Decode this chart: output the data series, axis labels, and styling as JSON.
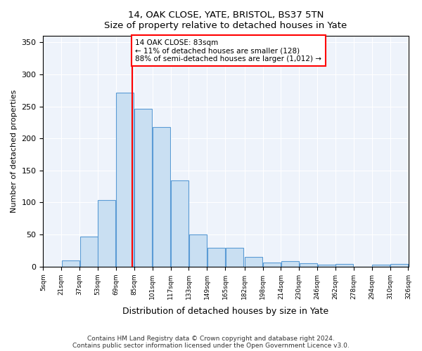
{
  "title": "14, OAK CLOSE, YATE, BRISTOL, BS37 5TN",
  "subtitle": "Size of property relative to detached houses in Yate",
  "xlabel": "Distribution of detached houses by size in Yate",
  "ylabel": "Number of detached properties",
  "footer_line1": "Contains HM Land Registry data © Crown copyright and database right 2024.",
  "footer_line2": "Contains public sector information licensed under the Open Government Licence v3.0.",
  "annotation_title": "14 OAK CLOSE: 83sqm",
  "annotation_line1": "← 11% of detached houses are smaller (128)",
  "annotation_line2": "88% of semi-detached houses are larger (1,012) →",
  "property_size": 83,
  "bar_edge_color": "#5b9bd5",
  "bar_fill_color": "#c9dff2",
  "vline_color": "red",
  "annotation_box_color": "red",
  "background_color": "#eef3fb",
  "bins": [
    5,
    21,
    37,
    53,
    69,
    85,
    101,
    117,
    133,
    149,
    165,
    182,
    198,
    214,
    230,
    246,
    262,
    278,
    294,
    310,
    326
  ],
  "bin_labels": [
    "5sqm",
    "21sqm",
    "37sqm",
    "53sqm",
    "69sqm",
    "85sqm",
    "101sqm",
    "117sqm",
    "133sqm",
    "149sqm",
    "165sqm",
    "182sqm",
    "198sqm",
    "214sqm",
    "230sqm",
    "246sqm",
    "262sqm",
    "278sqm",
    "294sqm",
    "310sqm",
    "326sqm"
  ],
  "bar_heights": [
    0,
    10,
    47,
    104,
    271,
    246,
    218,
    135,
    50,
    29,
    29,
    15,
    6,
    9,
    5,
    3,
    4,
    0,
    3,
    4
  ],
  "ylim": [
    0,
    360
  ],
  "yticks": [
    0,
    50,
    100,
    150,
    200,
    250,
    300,
    350
  ]
}
